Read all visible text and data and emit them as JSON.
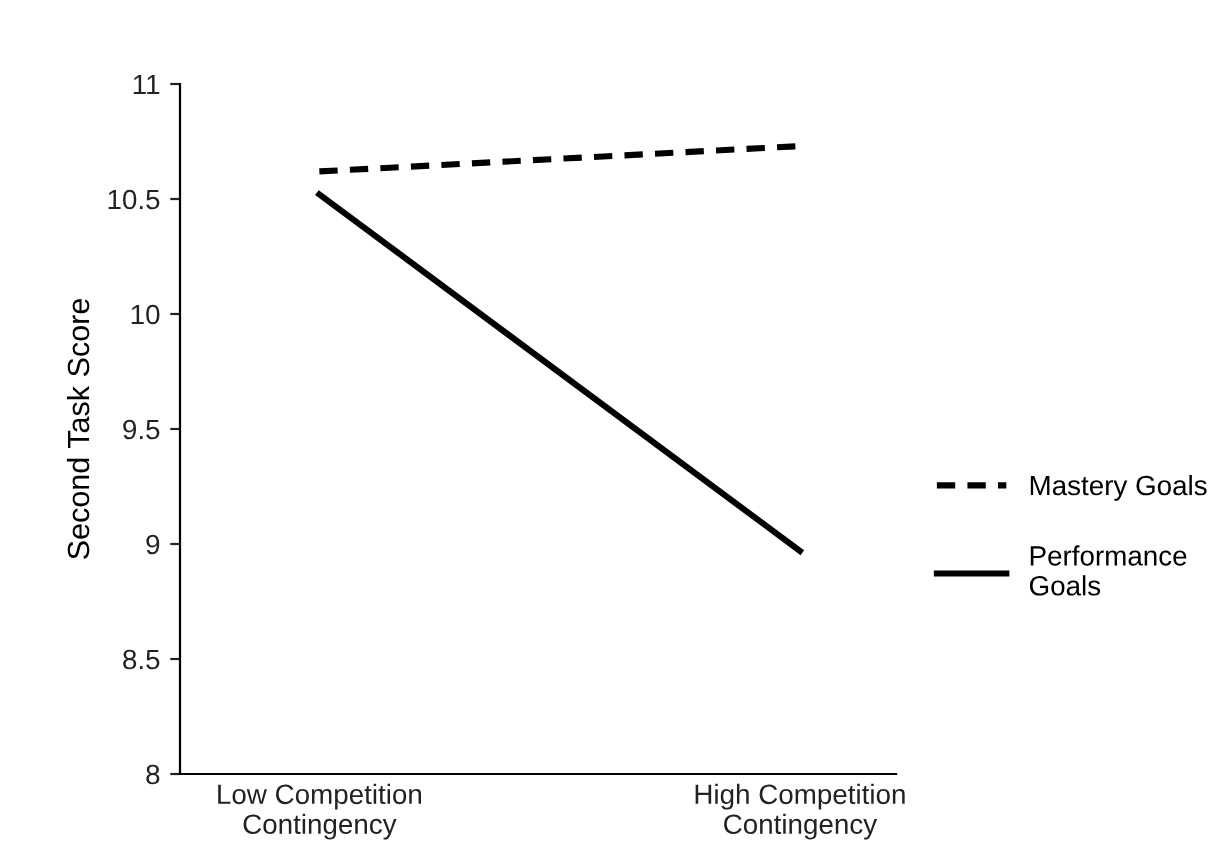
{
  "chart_data": {
    "type": "line",
    "ylabel": "Second Task Score",
    "categories": [
      "Low Competition\nContingency",
      "High Competition\nContingency"
    ],
    "series": [
      {
        "name": "Mastery Goals",
        "color": "#000000",
        "values": [
          10.62,
          10.73
        ],
        "line_style": "dashed"
      },
      {
        "name": "Performance\nGoals",
        "color": "#000000",
        "values": [
          10.52,
          8.97
        ],
        "line_style": "solid"
      }
    ],
    "ylim": [
      8,
      11
    ],
    "yticks": [
      8,
      8.5,
      9,
      9.5,
      10,
      10.5,
      11
    ],
    "grid": false,
    "legend": "right",
    "marker": "none"
  }
}
